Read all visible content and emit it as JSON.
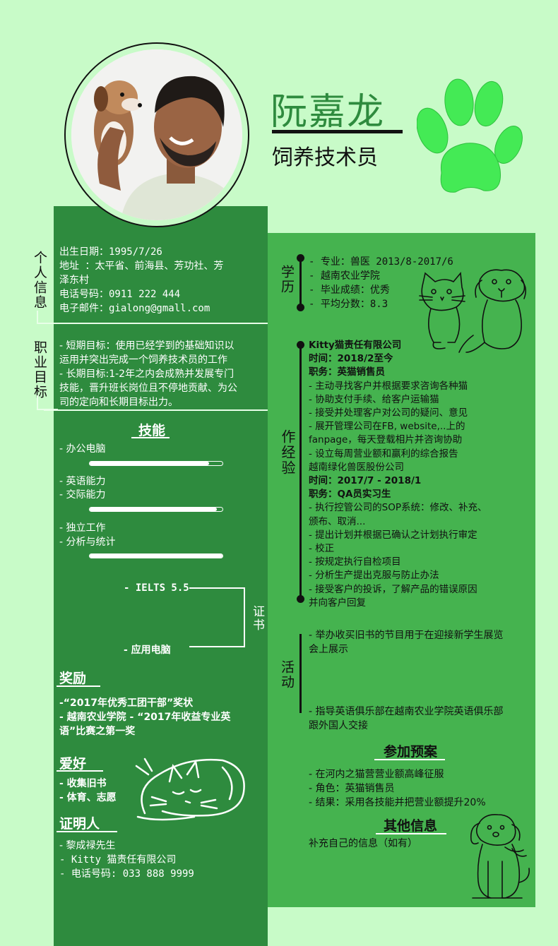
{
  "profile": {
    "name": "阮嘉龙",
    "job_title": "饲养技术员"
  },
  "personal": {
    "section_label": "个人信息",
    "lines": [
      "出生日期：1995/7/26",
      "地址    ：太平省、前海县、芳功社、芳",
      "泽东村",
      "电话号码：0911 222 444",
      "电子邮件：gialong@gmall.com"
    ]
  },
  "goals": {
    "section_label": "职业目标",
    "lines": [
      "- 短期目标：使用已经学到的基础知识以",
      "运用并突出完成一个饲养技术员的工作",
      "- 长期目标:1-2年之内会成熟并发展专门",
      "技能，晋升班长岗位且不停地贡献、为公",
      "司的定向和长期目标出力。"
    ]
  },
  "skills": {
    "title": "技能",
    "groups": [
      {
        "items": [
          "- 办公电脑"
        ],
        "level": 0.9
      },
      {
        "items": [
          "- 英语能力",
          "- 交际能力"
        ],
        "level": 0.96
      },
      {
        "items": [
          "- 独立工作",
          "- 分析与统计"
        ],
        "level": 1.0
      }
    ]
  },
  "certificates": {
    "label": "证书",
    "items": [
      "- IELTS 5.5",
      "- 应用电脑"
    ]
  },
  "awards": {
    "title": "奖励",
    "lines": [
      "-“2017年优秀工团干部”奖状",
      "- 越南农业学院 - “2017年收益专业英",
      "语”比赛之第一奖"
    ]
  },
  "hobbies": {
    "title": "爱好",
    "lines": [
      "- 收集旧书",
      "- 体育、志愿"
    ]
  },
  "references": {
    "title": "证明人",
    "lines": [
      "- 黎成禄先生",
      "- Kitty 猫责任有限公司",
      "- 电话号码: 033 888 9999"
    ]
  },
  "education": {
    "label": "学历",
    "lines": [
      "- 专业：兽医 2013/8-2017/6",
      "- 越南农业学院",
      "- 毕业成绩：优秀",
      "- 平均分数：8.3"
    ]
  },
  "experience": {
    "label": "作经验",
    "lines": [
      {
        "text": "Kitty猫责任有限公司",
        "bold": true
      },
      {
        "text": "时间：2018/2至今",
        "bold": true
      },
      {
        "text": "职务：英猫销售员",
        "bold": true
      },
      {
        "text": "-     主动寻找客户并根据要求咨询各种猫",
        "bold": false
      },
      {
        "text": "-     协助支付手续、给客户运输猫",
        "bold": false
      },
      {
        "text": "-     接受并处理客户对公司的疑问、意见",
        "bold": false
      },
      {
        "text": "-     展开管理公司在FB, website,..上的",
        "bold": false
      },
      {
        "text": "fanpage，每天登载相片并咨询协助",
        "bold": false
      },
      {
        "text": "-     设立每周营业额和赢利的综合报告",
        "bold": false
      },
      {
        "text": "越南绿化兽医股份公司",
        "bold": false
      },
      {
        "text": "时间：2017/7 - 2018/1",
        "bold": true
      },
      {
        "text": "职务：QA员实习生",
        "bold": true
      },
      {
        "text": "-     执行控管公司的SOP系统：修改、补充、",
        "bold": false
      },
      {
        "text": "颁布、取消...",
        "bold": false
      },
      {
        "text": "-     提出计划并根据已确认之计划执行审定",
        "bold": false
      },
      {
        "text": "- 校正",
        "bold": false
      },
      {
        "text": "-     按规定执行自检项目",
        "bold": false
      },
      {
        "text": "-     分析生产提出克服与防止办法",
        "bold": false
      },
      {
        "text": "-     接受客户的投诉，了解产品的错误原因",
        "bold": false
      },
      {
        "text": "并向客户回复",
        "bold": false
      }
    ]
  },
  "activities": {
    "label": "活动",
    "item1": [
      "- 举办收买旧书的节目用于在迎接新学生展览",
      "会上展示"
    ],
    "item2": [
      "- 指导英语俱乐部在越南农业学院英语俱乐部",
      "跟外国人交接"
    ]
  },
  "projects": {
    "title": "参加预案",
    "lines": [
      "- 在河内之猫营营业额高峰征服",
      "- 角色：英猫销售员",
      "- 结果：采用各技能并把营业额提升20%"
    ]
  },
  "other": {
    "title": "其他信息",
    "text": "补充自己的信息（如有）"
  },
  "colors": {
    "background": "#c8fbc8",
    "dark_green": "#2e8b3e",
    "mid_green": "#45b34f",
    "paw": "#44ea55"
  }
}
